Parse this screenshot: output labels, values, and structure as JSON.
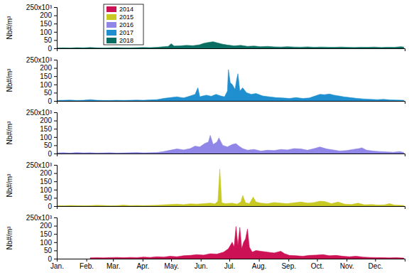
{
  "chart_data": [
    {
      "type": "area",
      "y_label": "Nb#/m³",
      "legend": "top-left",
      "tick_labels": "y",
      "xlim": [
        1,
        366
      ],
      "ylim": [
        0,
        250
      ],
      "yticks": [
        0,
        50,
        100,
        150,
        200,
        {
          "value": 250,
          "label": "250x10³"
        }
      ],
      "x": [
        1,
        8,
        15,
        22,
        29,
        36,
        43,
        50,
        57,
        64,
        71,
        78,
        85,
        92,
        99,
        106,
        113,
        118,
        121,
        124,
        130,
        137,
        144,
        151,
        155,
        160,
        165,
        170,
        175,
        180,
        187,
        194,
        201,
        208,
        215,
        222,
        229,
        236,
        243,
        250,
        257,
        264,
        271,
        278,
        285,
        292,
        299,
        306,
        313,
        320,
        327,
        334,
        341,
        348,
        355,
        362,
        365
      ],
      "series": [
        {
          "name": "2018",
          "color": "#0b6e63",
          "values": [
            2,
            3,
            2,
            4,
            3,
            5,
            3,
            2,
            3,
            4,
            3,
            3,
            4,
            5,
            4,
            6,
            10,
            12,
            28,
            14,
            15,
            18,
            16,
            22,
            30,
            36,
            40,
            32,
            25,
            20,
            15,
            18,
            12,
            14,
            10,
            12,
            9,
            8,
            10,
            8,
            7,
            9,
            6,
            8,
            7,
            6,
            8,
            6,
            5,
            7,
            6,
            8,
            5,
            7,
            6,
            10,
            8
          ]
        }
      ]
    },
    {
      "type": "area",
      "y_label": "Nb#/m³",
      "tick_labels": "y",
      "xlim": [
        1,
        366
      ],
      "ylim": [
        0,
        250
      ],
      "yticks": [
        0,
        50,
        100,
        150,
        200,
        {
          "value": 250,
          "label": "250x10³"
        }
      ],
      "x": [
        1,
        8,
        15,
        22,
        29,
        36,
        43,
        50,
        57,
        64,
        71,
        78,
        85,
        92,
        99,
        106,
        113,
        120,
        127,
        134,
        141,
        146,
        149,
        151,
        154,
        158,
        163,
        168,
        173,
        177,
        180,
        181,
        183,
        185,
        188,
        190,
        191,
        193,
        196,
        200,
        205,
        210,
        217,
        224,
        231,
        238,
        245,
        252,
        259,
        266,
        272,
        277,
        282,
        287,
        292,
        297,
        302,
        309,
        316,
        323,
        330,
        337,
        344,
        351,
        358,
        365
      ],
      "series": [
        {
          "name": "2017",
          "color": "#1f8fd0",
          "values": [
            3,
            4,
            5,
            3,
            4,
            8,
            4,
            3,
            3,
            4,
            3,
            4,
            5,
            4,
            6,
            8,
            15,
            20,
            25,
            18,
            30,
            40,
            80,
            25,
            30,
            35,
            28,
            40,
            30,
            25,
            60,
            190,
            110,
            100,
            70,
            140,
            165,
            60,
            80,
            50,
            40,
            45,
            30,
            25,
            20,
            18,
            15,
            20,
            15,
            18,
            30,
            40,
            38,
            42,
            35,
            30,
            25,
            20,
            15,
            12,
            10,
            8,
            10,
            6,
            5,
            4
          ]
        }
      ]
    },
    {
      "type": "area",
      "y_label": "Nb#/m³",
      "tick_labels": "y",
      "xlim": [
        1,
        366
      ],
      "ylim": [
        0,
        250
      ],
      "yticks": [
        0,
        50,
        100,
        150,
        200,
        {
          "value": 250,
          "label": "250x10³"
        }
      ],
      "x": [
        1,
        8,
        15,
        22,
        29,
        36,
        43,
        50,
        57,
        64,
        71,
        78,
        85,
        92,
        99,
        106,
        113,
        120,
        127,
        134,
        141,
        146,
        151,
        156,
        160,
        162,
        165,
        169,
        171,
        175,
        180,
        185,
        189,
        192,
        196,
        201,
        208,
        215,
        222,
        229,
        236,
        243,
        250,
        257,
        264,
        271,
        277,
        284,
        291,
        298,
        305,
        312,
        318,
        321,
        326,
        333,
        340,
        347,
        354,
        361,
        365
      ],
      "series": [
        {
          "name": "2016",
          "color": "#8f86e8",
          "values": [
            4,
            5,
            3,
            6,
            4,
            5,
            3,
            4,
            5,
            3,
            4,
            5,
            6,
            4,
            5,
            6,
            12,
            20,
            28,
            22,
            30,
            45,
            40,
            60,
            70,
            110,
            55,
            70,
            95,
            50,
            40,
            55,
            60,
            45,
            30,
            20,
            25,
            15,
            20,
            18,
            25,
            22,
            30,
            28,
            20,
            30,
            40,
            28,
            22,
            15,
            18,
            25,
            30,
            35,
            20,
            15,
            12,
            10,
            8,
            12,
            6
          ]
        }
      ]
    },
    {
      "type": "area",
      "y_label": "Nb#/m³",
      "tick_labels": "y",
      "xlim": [
        1,
        366
      ],
      "ylim": [
        0,
        250
      ],
      "yticks": [
        0,
        50,
        100,
        150,
        200,
        {
          "value": 250,
          "label": "250x10³"
        }
      ],
      "x": [
        1,
        8,
        15,
        22,
        29,
        36,
        43,
        50,
        57,
        64,
        71,
        78,
        85,
        92,
        99,
        106,
        113,
        120,
        127,
        134,
        141,
        148,
        155,
        162,
        167,
        170,
        172,
        174,
        178,
        185,
        190,
        194,
        196,
        199,
        203,
        207,
        210,
        215,
        222,
        229,
        236,
        243,
        250,
        257,
        264,
        271,
        277,
        282,
        289,
        296,
        303,
        310,
        317,
        324,
        331,
        338,
        345,
        350,
        355,
        360,
        365
      ],
      "series": [
        {
          "name": "2015",
          "color": "#c9c924",
          "values": [
            3,
            2,
            4,
            3,
            2,
            3,
            5,
            4,
            2,
            3,
            6,
            3,
            4,
            3,
            4,
            5,
            8,
            10,
            12,
            9,
            14,
            12,
            15,
            18,
            14,
            30,
            225,
            20,
            15,
            18,
            12,
            25,
            65,
            20,
            15,
            55,
            25,
            18,
            15,
            22,
            18,
            15,
            20,
            25,
            18,
            22,
            30,
            28,
            15,
            25,
            12,
            10,
            18,
            8,
            10,
            6,
            8,
            15,
            6,
            5,
            4
          ]
        }
      ]
    },
    {
      "type": "area",
      "y_label": "Nb#/m³",
      "xlim": [
        1,
        366
      ],
      "ylim": [
        0,
        250
      ],
      "yticks": [
        0,
        50,
        100,
        150,
        200,
        {
          "value": 250,
          "label": "250x10³"
        }
      ],
      "xticks": [
        {
          "value": 1,
          "label": "Jan."
        },
        {
          "value": 32,
          "label": "Feb."
        },
        {
          "value": 60,
          "label": "Mar."
        },
        {
          "value": 91,
          "label": "Apr."
        },
        {
          "value": 121,
          "label": "May."
        },
        {
          "value": 152,
          "label": "Jun."
        },
        {
          "value": 182,
          "label": "Jul."
        },
        {
          "value": 213,
          "label": "Aug."
        },
        {
          "value": 244,
          "label": "Sep."
        },
        {
          "value": 274,
          "label": "Oct."
        },
        {
          "value": 305,
          "label": "Nov."
        },
        {
          "value": 335,
          "label": "Dec."
        }
      ],
      "x": [
        1,
        8,
        15,
        22,
        29,
        36,
        43,
        50,
        57,
        64,
        71,
        78,
        85,
        92,
        99,
        106,
        113,
        120,
        127,
        134,
        141,
        148,
        155,
        162,
        169,
        176,
        181,
        185,
        187,
        189,
        191,
        193,
        195,
        197,
        199,
        201,
        203,
        206,
        210,
        215,
        222,
        229,
        236,
        240,
        245,
        252,
        259,
        266,
        273,
        280,
        287,
        294,
        301,
        308,
        315,
        322,
        329,
        336,
        343,
        350,
        357,
        365
      ],
      "series": [
        {
          "name": "2014",
          "color": "#cc1155",
          "values": [
            null,
            null,
            null,
            null,
            null,
            5,
            6,
            5,
            7,
            8,
            6,
            8,
            7,
            10,
            8,
            12,
            10,
            15,
            12,
            18,
            20,
            25,
            22,
            30,
            28,
            40,
            60,
            100,
            70,
            195,
            80,
            190,
            60,
            100,
            120,
            180,
            70,
            40,
            50,
            45,
            40,
            35,
            45,
            30,
            20,
            18,
            15,
            20,
            22,
            25,
            18,
            20,
            15,
            12,
            15,
            10,
            8,
            7,
            6,
            5,
            6,
            4
          ]
        }
      ]
    }
  ]
}
